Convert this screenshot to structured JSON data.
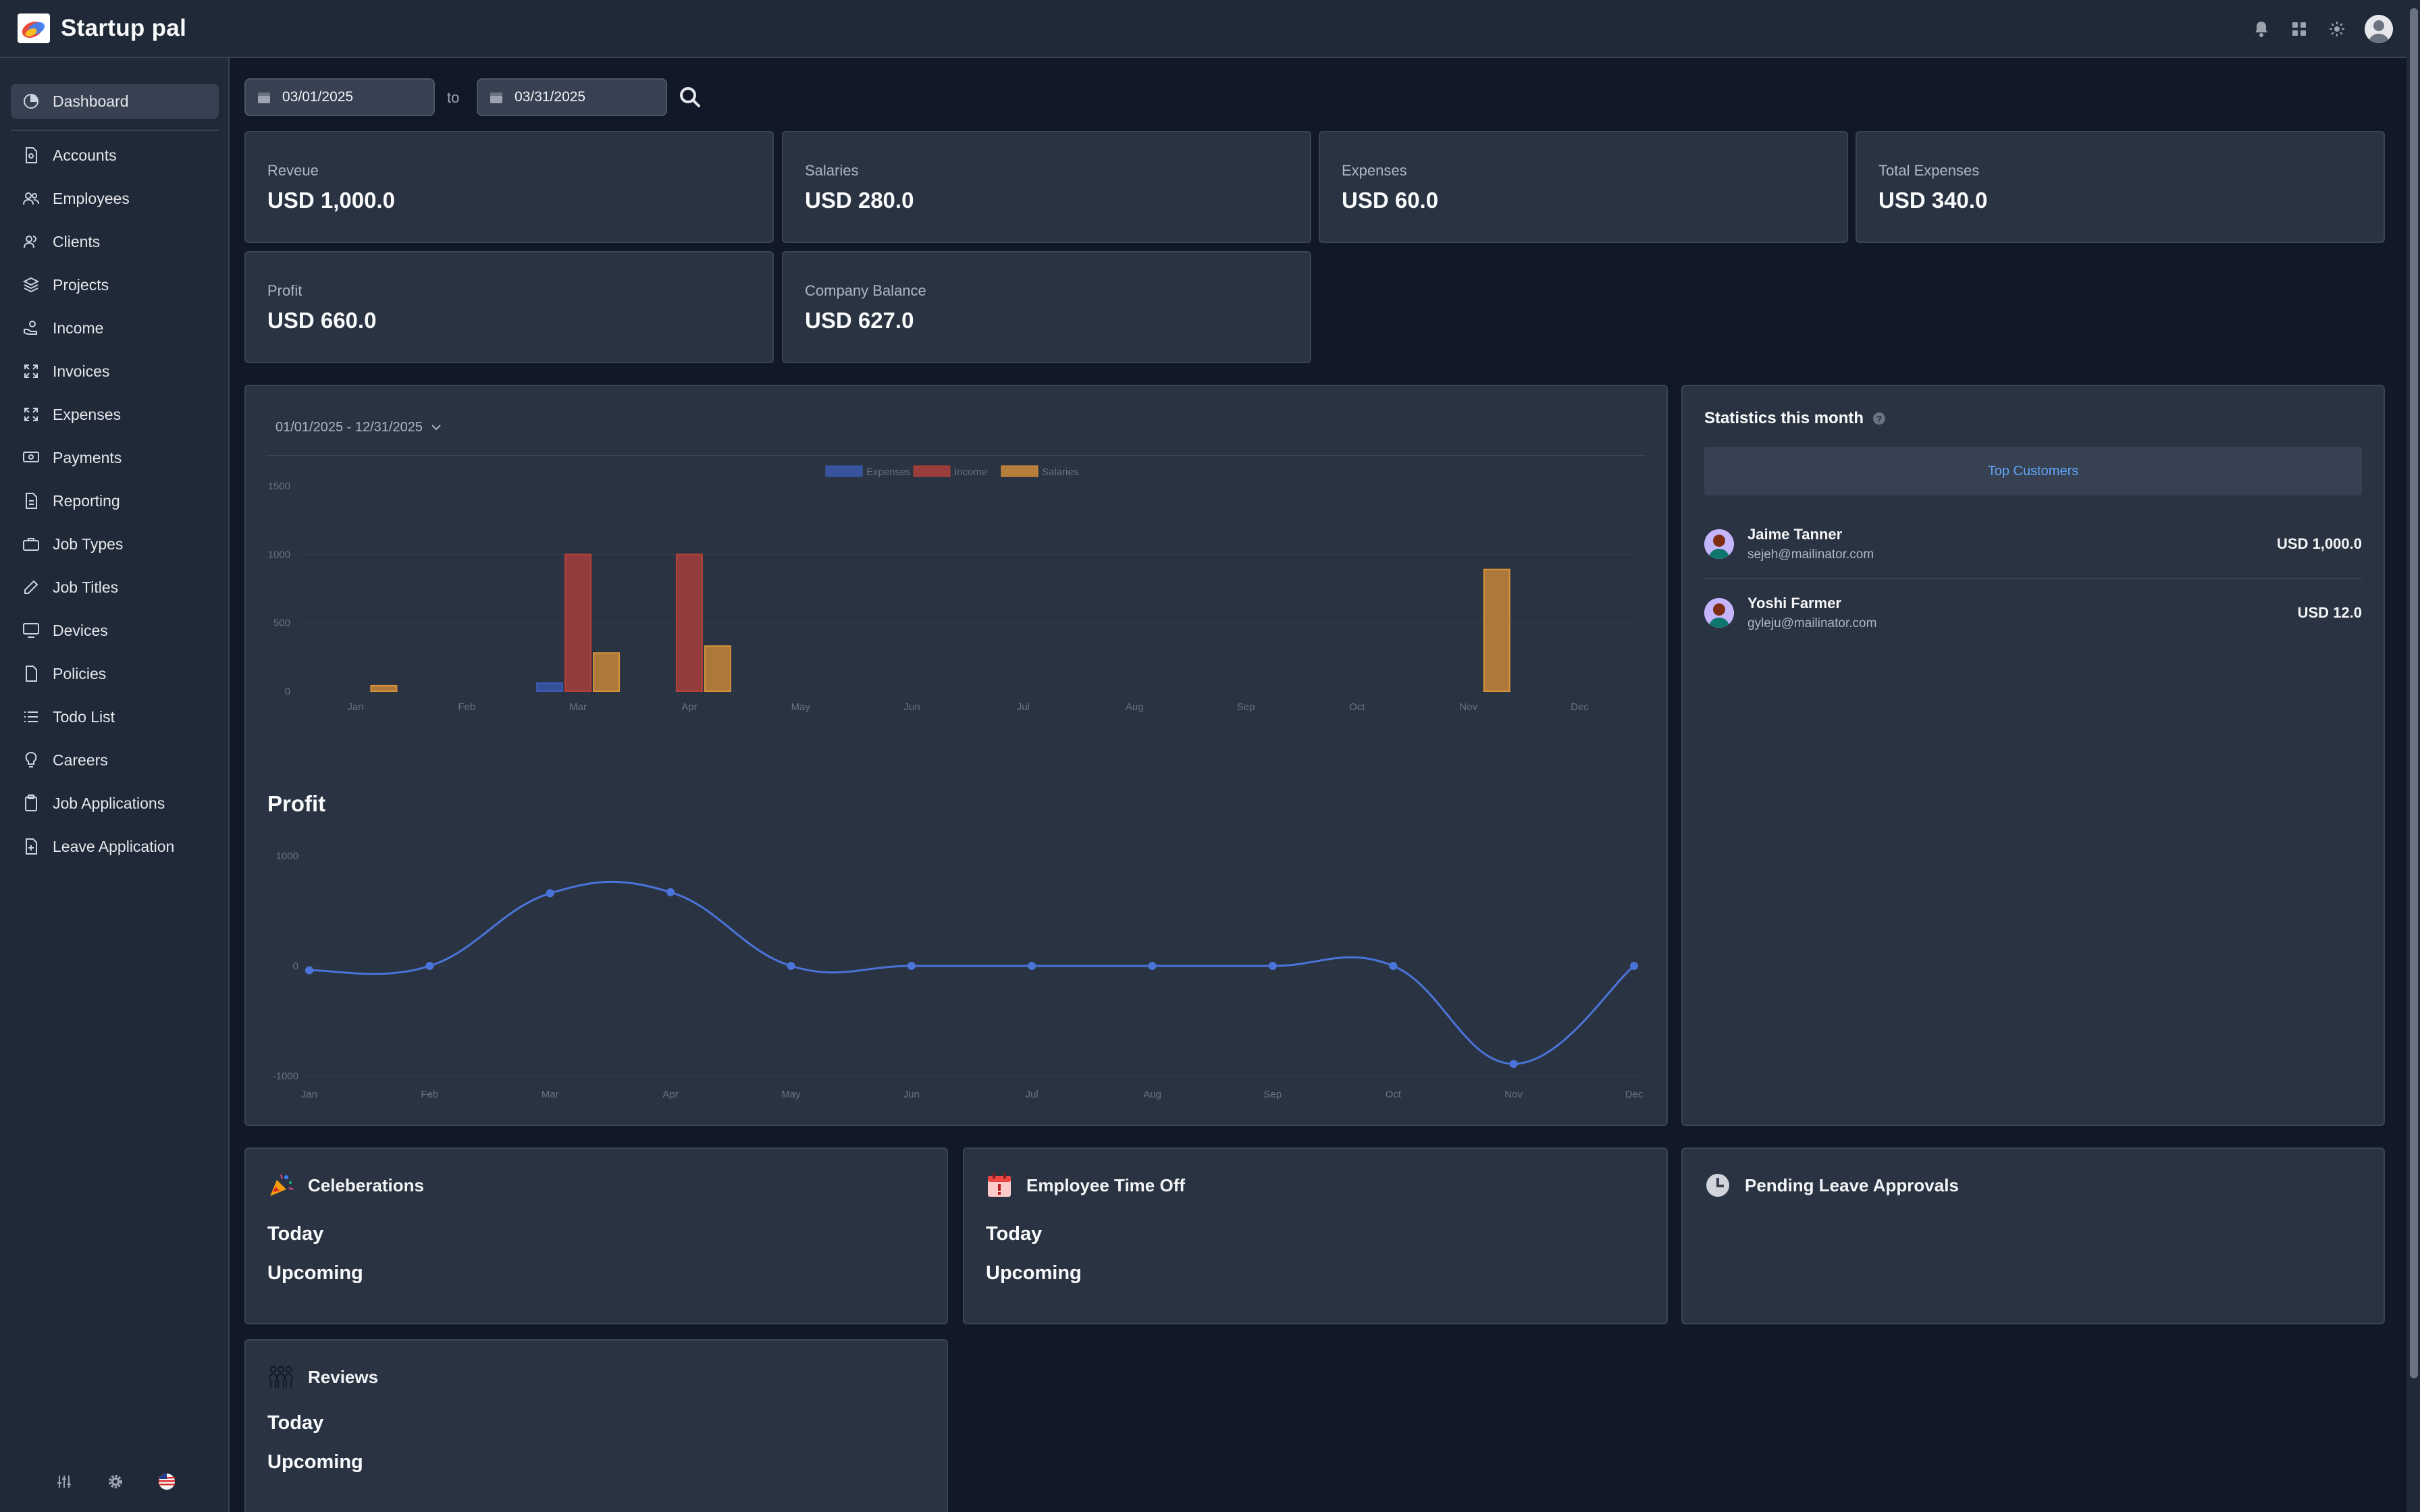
{
  "app": {
    "title": "Startup pal",
    "colors": {
      "background": "#111827",
      "surface": "#2a3342",
      "accent": "#60a5fa"
    }
  },
  "header": {
    "icons": [
      "bell-icon",
      "apps-grid-icon",
      "theme-sun-icon",
      "user-avatar"
    ]
  },
  "sidebar": {
    "items": [
      {
        "label": "Dashboard",
        "icon": "pie-chart-icon",
        "active": true
      },
      {
        "label": "Accounts",
        "icon": "document-icon"
      },
      {
        "label": "Employees",
        "icon": "users-icon"
      },
      {
        "label": "Clients",
        "icon": "user-group-icon"
      },
      {
        "label": "Projects",
        "icon": "layers-icon"
      },
      {
        "label": "Income",
        "icon": "hand-coin-icon"
      },
      {
        "label": "Invoices",
        "icon": "expand-arrows-icon"
      },
      {
        "label": "Expenses",
        "icon": "expand-arrows-icon"
      },
      {
        "label": "Payments",
        "icon": "cash-icon"
      },
      {
        "label": "Reporting",
        "icon": "document-icon"
      },
      {
        "label": "Job Types",
        "icon": "briefcase-icon"
      },
      {
        "label": "Job Titles",
        "icon": "pencil-icon"
      },
      {
        "label": "Devices",
        "icon": "monitor-icon"
      },
      {
        "label": "Policies",
        "icon": "document-icon"
      },
      {
        "label": "Todo List",
        "icon": "list-icon"
      },
      {
        "label": "Careers",
        "icon": "lightbulb-icon"
      },
      {
        "label": "Job Applications",
        "icon": "clipboard-icon"
      },
      {
        "label": "Leave Application",
        "icon": "document-plus-icon"
      }
    ],
    "bottom_icons": [
      "sliders-icon",
      "gear-icon",
      "us-flag-icon"
    ]
  },
  "filters": {
    "from": "03/01/2025",
    "to_label": "to",
    "to": "03/31/2025"
  },
  "stats": [
    {
      "label": "Reveue",
      "value": "USD 1,000.0"
    },
    {
      "label": "Salaries",
      "value": "USD 280.0"
    },
    {
      "label": "Expenses",
      "value": "USD 60.0"
    },
    {
      "label": "Total Expenses",
      "value": "USD 340.0"
    },
    {
      "label": "Profit",
      "value": "USD 660.0"
    },
    {
      "label": "Company Balance",
      "value": "USD 627.0"
    }
  ],
  "charts_panel": {
    "range": "01/01/2025 - 12/31/2025",
    "profit_title": "Profit"
  },
  "chart_data": [
    {
      "type": "bar",
      "categories": [
        "Jan",
        "Feb",
        "Mar",
        "Apr",
        "May",
        "Jun",
        "Jul",
        "Aug",
        "Sep",
        "Oct",
        "Nov",
        "Dec"
      ],
      "series": [
        {
          "name": "Expenses",
          "color": "#3b5bb5",
          "values": [
            0,
            0,
            60,
            0,
            0,
            0,
            0,
            0,
            0,
            0,
            0,
            0
          ]
        },
        {
          "name": "Income",
          "color": "#b5413a",
          "values": [
            0,
            0,
            1000,
            1000,
            0,
            0,
            0,
            0,
            0,
            0,
            0,
            0
          ]
        },
        {
          "name": "Salaries",
          "color": "#d9913a",
          "values": [
            40,
            0,
            280,
            330,
            0,
            0,
            0,
            0,
            0,
            0,
            890,
            0
          ]
        }
      ],
      "ylim": [
        0,
        1500
      ],
      "yticks": [
        "0",
        "500",
        "1000",
        "1500"
      ],
      "legend": "top-center"
    },
    {
      "type": "line",
      "title": "Profit",
      "categories": [
        "Jan",
        "Feb",
        "Mar",
        "Apr",
        "May",
        "Jun",
        "Jul",
        "Aug",
        "Sep",
        "Oct",
        "Nov",
        "Dec"
      ],
      "series": [
        {
          "color": "#4a74d9",
          "values": [
            -40,
            0,
            660,
            670,
            0,
            0,
            0,
            0,
            0,
            0,
            -890,
            0
          ]
        }
      ],
      "ylim": [
        -1000,
        1000
      ],
      "yticks": [
        "-1000",
        "0",
        "1000"
      ]
    }
  ],
  "statistics": {
    "title": "Statistics this month",
    "help": "?",
    "tab": "Top Customers",
    "customers": [
      {
        "name": "Jaime Tanner",
        "email": "sejeh@mailinator.com",
        "amount": "USD 1,000.0"
      },
      {
        "name": "Yoshi Farmer",
        "email": "gyleju@mailinator.com",
        "amount": "USD 12.0"
      }
    ]
  },
  "panels": {
    "celebrations": {
      "title": "Celeberations",
      "today": "Today",
      "upcoming": "Upcoming"
    },
    "time_off": {
      "title": "Employee Time Off",
      "today": "Today",
      "upcoming": "Upcoming"
    },
    "pending": {
      "title": "Pending Leave Approvals"
    },
    "reviews": {
      "title": "Reviews",
      "today": "Today",
      "upcoming": "Upcoming"
    }
  }
}
